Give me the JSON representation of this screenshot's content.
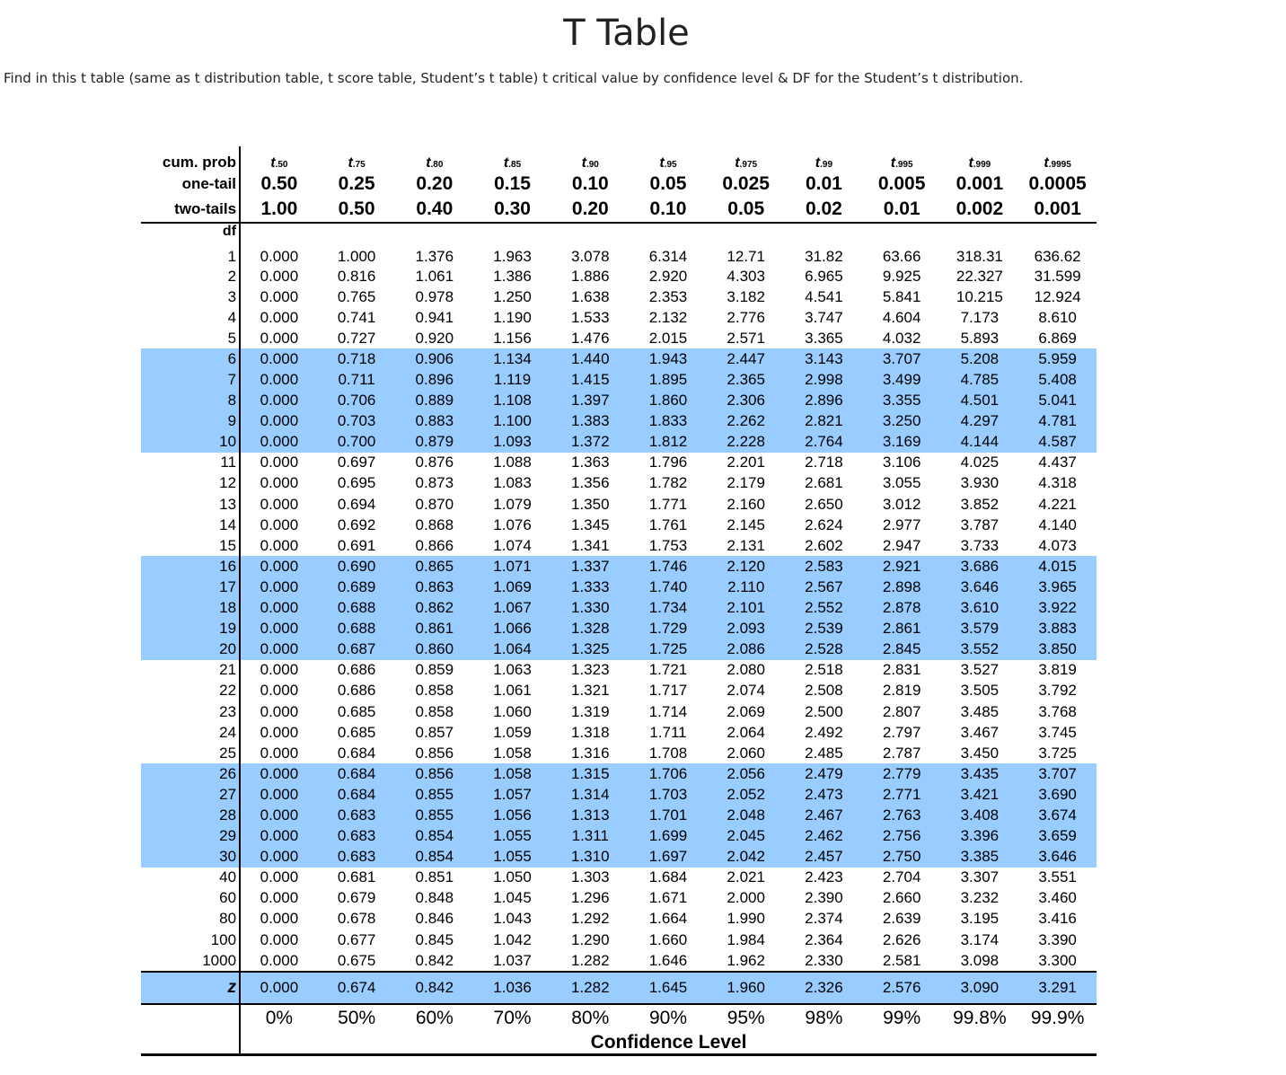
{
  "title": "T Table",
  "description": "Find in this t table (same as t distribution table, t score table, Student’s t table) t critical value by confidence level & DF for the Student’s t distribution.",
  "table": {
    "row_labels": {
      "cum_prob": "cum. prob",
      "one_tail": "one-tail",
      "two_tails": "two-tails",
      "df": "df",
      "z": "z"
    },
    "t_symbol": "t",
    "cum_prob_subscripts": [
      ".50",
      ".75",
      ".80",
      ".85",
      ".90",
      ".95",
      ".975",
      ".99",
      ".995",
      ".999",
      ".9995"
    ],
    "one_tail": [
      "0.50",
      "0.25",
      "0.20",
      "0.15",
      "0.10",
      "0.05",
      "0.025",
      "0.01",
      "0.005",
      "0.001",
      "0.0005"
    ],
    "two_tails": [
      "1.00",
      "0.50",
      "0.40",
      "0.30",
      "0.20",
      "0.10",
      "0.05",
      "0.02",
      "0.01",
      "0.002",
      "0.001"
    ],
    "rows": [
      {
        "df": "1",
        "values": [
          "0.000",
          "1.000",
          "1.376",
          "1.963",
          "3.078",
          "6.314",
          "12.71",
          "31.82",
          "63.66",
          "318.31",
          "636.62"
        ]
      },
      {
        "df": "2",
        "values": [
          "0.000",
          "0.816",
          "1.061",
          "1.386",
          "1.886",
          "2.920",
          "4.303",
          "6.965",
          "9.925",
          "22.327",
          "31.599"
        ]
      },
      {
        "df": "3",
        "values": [
          "0.000",
          "0.765",
          "0.978",
          "1.250",
          "1.638",
          "2.353",
          "3.182",
          "4.541",
          "5.841",
          "10.215",
          "12.924"
        ]
      },
      {
        "df": "4",
        "values": [
          "0.000",
          "0.741",
          "0.941",
          "1.190",
          "1.533",
          "2.132",
          "2.776",
          "3.747",
          "4.604",
          "7.173",
          "8.610"
        ]
      },
      {
        "df": "5",
        "values": [
          "0.000",
          "0.727",
          "0.920",
          "1.156",
          "1.476",
          "2.015",
          "2.571",
          "3.365",
          "4.032",
          "5.893",
          "6.869"
        ]
      },
      {
        "df": "6",
        "values": [
          "0.000",
          "0.718",
          "0.906",
          "1.134",
          "1.440",
          "1.943",
          "2.447",
          "3.143",
          "3.707",
          "5.208",
          "5.959"
        ]
      },
      {
        "df": "7",
        "values": [
          "0.000",
          "0.711",
          "0.896",
          "1.119",
          "1.415",
          "1.895",
          "2.365",
          "2.998",
          "3.499",
          "4.785",
          "5.408"
        ]
      },
      {
        "df": "8",
        "values": [
          "0.000",
          "0.706",
          "0.889",
          "1.108",
          "1.397",
          "1.860",
          "2.306",
          "2.896",
          "3.355",
          "4.501",
          "5.041"
        ]
      },
      {
        "df": "9",
        "values": [
          "0.000",
          "0.703",
          "0.883",
          "1.100",
          "1.383",
          "1.833",
          "2.262",
          "2.821",
          "3.250",
          "4.297",
          "4.781"
        ]
      },
      {
        "df": "10",
        "values": [
          "0.000",
          "0.700",
          "0.879",
          "1.093",
          "1.372",
          "1.812",
          "2.228",
          "2.764",
          "3.169",
          "4.144",
          "4.587"
        ]
      },
      {
        "df": "11",
        "values": [
          "0.000",
          "0.697",
          "0.876",
          "1.088",
          "1.363",
          "1.796",
          "2.201",
          "2.718",
          "3.106",
          "4.025",
          "4.437"
        ]
      },
      {
        "df": "12",
        "values": [
          "0.000",
          "0.695",
          "0.873",
          "1.083",
          "1.356",
          "1.782",
          "2.179",
          "2.681",
          "3.055",
          "3.930",
          "4.318"
        ]
      },
      {
        "df": "13",
        "values": [
          "0.000",
          "0.694",
          "0.870",
          "1.079",
          "1.350",
          "1.771",
          "2.160",
          "2.650",
          "3.012",
          "3.852",
          "4.221"
        ]
      },
      {
        "df": "14",
        "values": [
          "0.000",
          "0.692",
          "0.868",
          "1.076",
          "1.345",
          "1.761",
          "2.145",
          "2.624",
          "2.977",
          "3.787",
          "4.140"
        ]
      },
      {
        "df": "15",
        "values": [
          "0.000",
          "0.691",
          "0.866",
          "1.074",
          "1.341",
          "1.753",
          "2.131",
          "2.602",
          "2.947",
          "3.733",
          "4.073"
        ]
      },
      {
        "df": "16",
        "values": [
          "0.000",
          "0.690",
          "0.865",
          "1.071",
          "1.337",
          "1.746",
          "2.120",
          "2.583",
          "2.921",
          "3.686",
          "4.015"
        ]
      },
      {
        "df": "17",
        "values": [
          "0.000",
          "0.689",
          "0.863",
          "1.069",
          "1.333",
          "1.740",
          "2.110",
          "2.567",
          "2.898",
          "3.646",
          "3.965"
        ]
      },
      {
        "df": "18",
        "values": [
          "0.000",
          "0.688",
          "0.862",
          "1.067",
          "1.330",
          "1.734",
          "2.101",
          "2.552",
          "2.878",
          "3.610",
          "3.922"
        ]
      },
      {
        "df": "19",
        "values": [
          "0.000",
          "0.688",
          "0.861",
          "1.066",
          "1.328",
          "1.729",
          "2.093",
          "2.539",
          "2.861",
          "3.579",
          "3.883"
        ]
      },
      {
        "df": "20",
        "values": [
          "0.000",
          "0.687",
          "0.860",
          "1.064",
          "1.325",
          "1.725",
          "2.086",
          "2.528",
          "2.845",
          "3.552",
          "3.850"
        ]
      },
      {
        "df": "21",
        "values": [
          "0.000",
          "0.686",
          "0.859",
          "1.063",
          "1.323",
          "1.721",
          "2.080",
          "2.518",
          "2.831",
          "3.527",
          "3.819"
        ]
      },
      {
        "df": "22",
        "values": [
          "0.000",
          "0.686",
          "0.858",
          "1.061",
          "1.321",
          "1.717",
          "2.074",
          "2.508",
          "2.819",
          "3.505",
          "3.792"
        ]
      },
      {
        "df": "23",
        "values": [
          "0.000",
          "0.685",
          "0.858",
          "1.060",
          "1.319",
          "1.714",
          "2.069",
          "2.500",
          "2.807",
          "3.485",
          "3.768"
        ]
      },
      {
        "df": "24",
        "values": [
          "0.000",
          "0.685",
          "0.857",
          "1.059",
          "1.318",
          "1.711",
          "2.064",
          "2.492",
          "2.797",
          "3.467",
          "3.745"
        ]
      },
      {
        "df": "25",
        "values": [
          "0.000",
          "0.684",
          "0.856",
          "1.058",
          "1.316",
          "1.708",
          "2.060",
          "2.485",
          "2.787",
          "3.450",
          "3.725"
        ]
      },
      {
        "df": "26",
        "values": [
          "0.000",
          "0.684",
          "0.856",
          "1.058",
          "1.315",
          "1.706",
          "2.056",
          "2.479",
          "2.779",
          "3.435",
          "3.707"
        ]
      },
      {
        "df": "27",
        "values": [
          "0.000",
          "0.684",
          "0.855",
          "1.057",
          "1.314",
          "1.703",
          "2.052",
          "2.473",
          "2.771",
          "3.421",
          "3.690"
        ]
      },
      {
        "df": "28",
        "values": [
          "0.000",
          "0.683",
          "0.855",
          "1.056",
          "1.313",
          "1.701",
          "2.048",
          "2.467",
          "2.763",
          "3.408",
          "3.674"
        ]
      },
      {
        "df": "29",
        "values": [
          "0.000",
          "0.683",
          "0.854",
          "1.055",
          "1.311",
          "1.699",
          "2.045",
          "2.462",
          "2.756",
          "3.396",
          "3.659"
        ]
      },
      {
        "df": "30",
        "values": [
          "0.000",
          "0.683",
          "0.854",
          "1.055",
          "1.310",
          "1.697",
          "2.042",
          "2.457",
          "2.750",
          "3.385",
          "3.646"
        ]
      },
      {
        "df": "40",
        "values": [
          "0.000",
          "0.681",
          "0.851",
          "1.050",
          "1.303",
          "1.684",
          "2.021",
          "2.423",
          "2.704",
          "3.307",
          "3.551"
        ]
      },
      {
        "df": "60",
        "values": [
          "0.000",
          "0.679",
          "0.848",
          "1.045",
          "1.296",
          "1.671",
          "2.000",
          "2.390",
          "2.660",
          "3.232",
          "3.460"
        ]
      },
      {
        "df": "80",
        "values": [
          "0.000",
          "0.678",
          "0.846",
          "1.043",
          "1.292",
          "1.664",
          "1.990",
          "2.374",
          "2.639",
          "3.195",
          "3.416"
        ]
      },
      {
        "df": "100",
        "values": [
          "0.000",
          "0.677",
          "0.845",
          "1.042",
          "1.290",
          "1.660",
          "1.984",
          "2.364",
          "2.626",
          "3.174",
          "3.390"
        ]
      },
      {
        "df": "1000",
        "values": [
          "0.000",
          "0.675",
          "0.842",
          "1.037",
          "1.282",
          "1.646",
          "1.962",
          "2.330",
          "2.581",
          "3.098",
          "3.300"
        ]
      }
    ],
    "z_values": [
      "0.000",
      "0.674",
      "0.842",
      "1.036",
      "1.282",
      "1.645",
      "1.960",
      "2.326",
      "2.576",
      "3.090",
      "3.291"
    ],
    "confidence_levels": [
      "0%",
      "50%",
      "60%",
      "70%",
      "80%",
      "90%",
      "95%",
      "98%",
      "99%",
      "99.8%",
      "99.9%"
    ],
    "confidence_label": "Confidence Level",
    "band_color": "#99ccff",
    "band_groups": "df 6–10, 16–20, 26–30 and z row are shaded"
  }
}
